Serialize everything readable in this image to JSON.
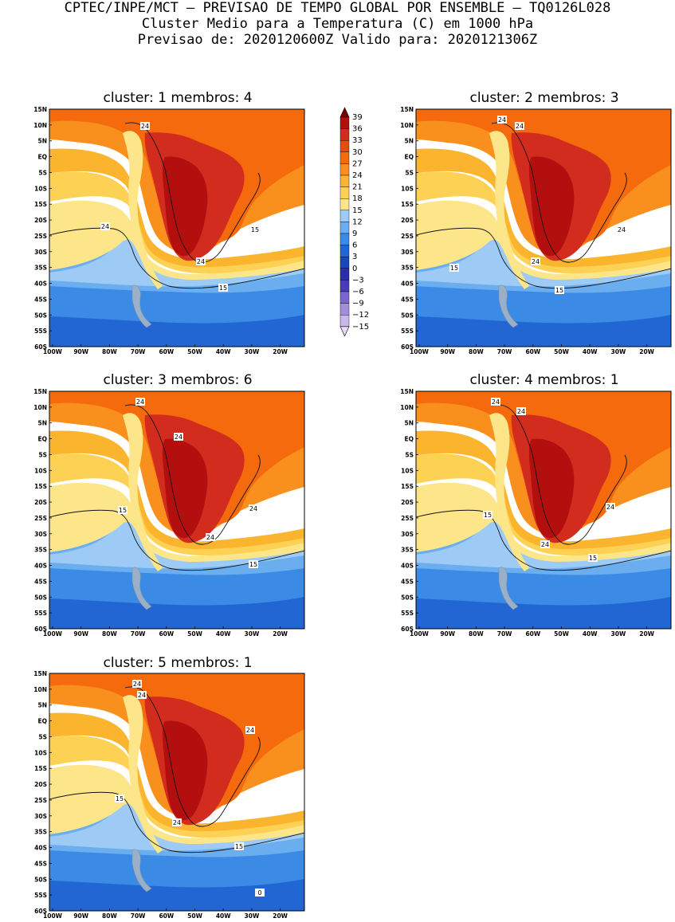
{
  "header": {
    "line1": "CPTEC/INPE/MCT – PREVISAO DE TEMPO GLOBAL POR ENSEMBLE – TQ0126L028",
    "line2": "Cluster Medio para a Temperatura (C) em 1000 hPa",
    "line3": "Previsao de: 2020120600Z   Valido para: 2020121306Z"
  },
  "panels": [
    {
      "title": "cluster: 1   membros: 4",
      "labels": [
        "24",
        "24",
        "24",
        "15",
        "15"
      ]
    },
    {
      "title": "cluster: 2   membros: 3",
      "labels": [
        "24",
        "24",
        "24",
        "24",
        "15",
        "15"
      ]
    },
    {
      "title": "cluster: 3   membros: 6",
      "labels": [
        "24",
        "24",
        "24",
        "24",
        "15",
        "15"
      ]
    },
    {
      "title": "cluster: 4   membros: 1",
      "labels": [
        "24",
        "24",
        "24",
        "24",
        "15",
        "15"
      ]
    },
    {
      "title": "cluster: 5   membros: 1",
      "labels": [
        "24",
        "24",
        "24",
        "24",
        "15",
        "15",
        "0"
      ]
    }
  ],
  "lat_labels": [
    "15N",
    "10N",
    "5N",
    "EQ",
    "5S",
    "10S",
    "15S",
    "20S",
    "25S",
    "30S",
    "35S",
    "40S",
    "45S",
    "50S",
    "55S",
    "60S"
  ],
  "lon_labels": [
    "100W",
    "90W",
    "80W",
    "70W",
    "60W",
    "50W",
    "40W",
    "30W",
    "20W"
  ],
  "colorbar": {
    "values": [
      "39",
      "36",
      "33",
      "30",
      "27",
      "24",
      "21",
      "18",
      "15",
      "12",
      "9",
      "6",
      "3",
      "0",
      "-3",
      "-6",
      "-9",
      "-12",
      "-15"
    ],
    "colors": [
      "#7a0000",
      "#b40f0f",
      "#d22c1e",
      "#e84a14",
      "#f46a0c",
      "#f9901e",
      "#fbb42e",
      "#fdd254",
      "#fde68a",
      "#9ecbf5",
      "#6aaef0",
      "#3b8ae6",
      "#2166d2",
      "#1848b8",
      "#2b2ea8",
      "#4a3cb8",
      "#7a66cc",
      "#a48edb",
      "#c9b8ea",
      "#e6dcf5"
    ]
  },
  "palette": {
    "ocean_hot": "#f46a0c",
    "warm": "#f9901e",
    "mid": "#fbb42e",
    "light": "#fdd254",
    "pale": "#fde68a",
    "cool1": "#9ecbf5",
    "cool2": "#6aaef0",
    "cool3": "#3b8ae6",
    "cool4": "#2166d2",
    "land_hot": "#d22c1e",
    "land_hotter": "#b40f0f",
    "andes": "#fde68a"
  }
}
